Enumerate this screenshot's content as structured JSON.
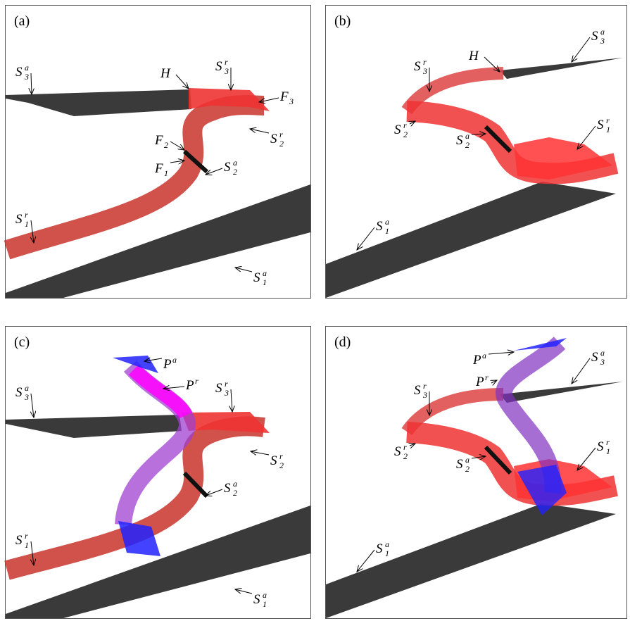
{
  "panels": [
    {
      "label": "(a)",
      "annotations": [
        {
          "base": "S",
          "sub": "3",
          "sup": "a"
        },
        {
          "base": "H"
        },
        {
          "base": "S",
          "sub": "3",
          "sup": "r"
        },
        {
          "base": "F",
          "sub": "3"
        },
        {
          "base": "S",
          "sub": "2",
          "sup": "r"
        },
        {
          "base": "F",
          "sub": "2"
        },
        {
          "base": "F",
          "sub": "1"
        },
        {
          "base": "S",
          "sub": "2",
          "sup": "a"
        },
        {
          "base": "S",
          "sub": "1",
          "sup": "r"
        },
        {
          "base": "S",
          "sub": "1",
          "sup": "a"
        }
      ]
    },
    {
      "label": "(b)",
      "annotations": [
        {
          "base": "S",
          "sub": "3",
          "sup": "a"
        },
        {
          "base": "H"
        },
        {
          "base": "S",
          "sub": "3",
          "sup": "r"
        },
        {
          "base": "S",
          "sub": "2",
          "sup": "r"
        },
        {
          "base": "S",
          "sub": "2",
          "sup": "a"
        },
        {
          "base": "S",
          "sub": "1",
          "sup": "r"
        },
        {
          "base": "S",
          "sub": "1",
          "sup": "a"
        }
      ]
    },
    {
      "label": "(c)",
      "annotations": [
        {
          "base": "P",
          "sup": "a"
        },
        {
          "base": "P",
          "sup": "r"
        },
        {
          "base": "S",
          "sub": "3",
          "sup": "a"
        },
        {
          "base": "S",
          "sub": "3",
          "sup": "r"
        },
        {
          "base": "S",
          "sub": "2",
          "sup": "r"
        },
        {
          "base": "S",
          "sub": "2",
          "sup": "a"
        },
        {
          "base": "S",
          "sub": "1",
          "sup": "r"
        },
        {
          "base": "S",
          "sub": "1",
          "sup": "a"
        }
      ]
    },
    {
      "label": "(d)",
      "annotations": [
        {
          "base": "P",
          "sup": "a"
        },
        {
          "base": "P",
          "sup": "r"
        },
        {
          "base": "S",
          "sub": "3",
          "sup": "a"
        },
        {
          "base": "S",
          "sub": "3",
          "sup": "r"
        },
        {
          "base": "S",
          "sub": "2",
          "sup": "r"
        },
        {
          "base": "S",
          "sub": "2",
          "sup": "a"
        },
        {
          "base": "S",
          "sub": "1",
          "sup": "r"
        },
        {
          "base": "S",
          "sub": "1",
          "sup": "a"
        }
      ]
    }
  ]
}
